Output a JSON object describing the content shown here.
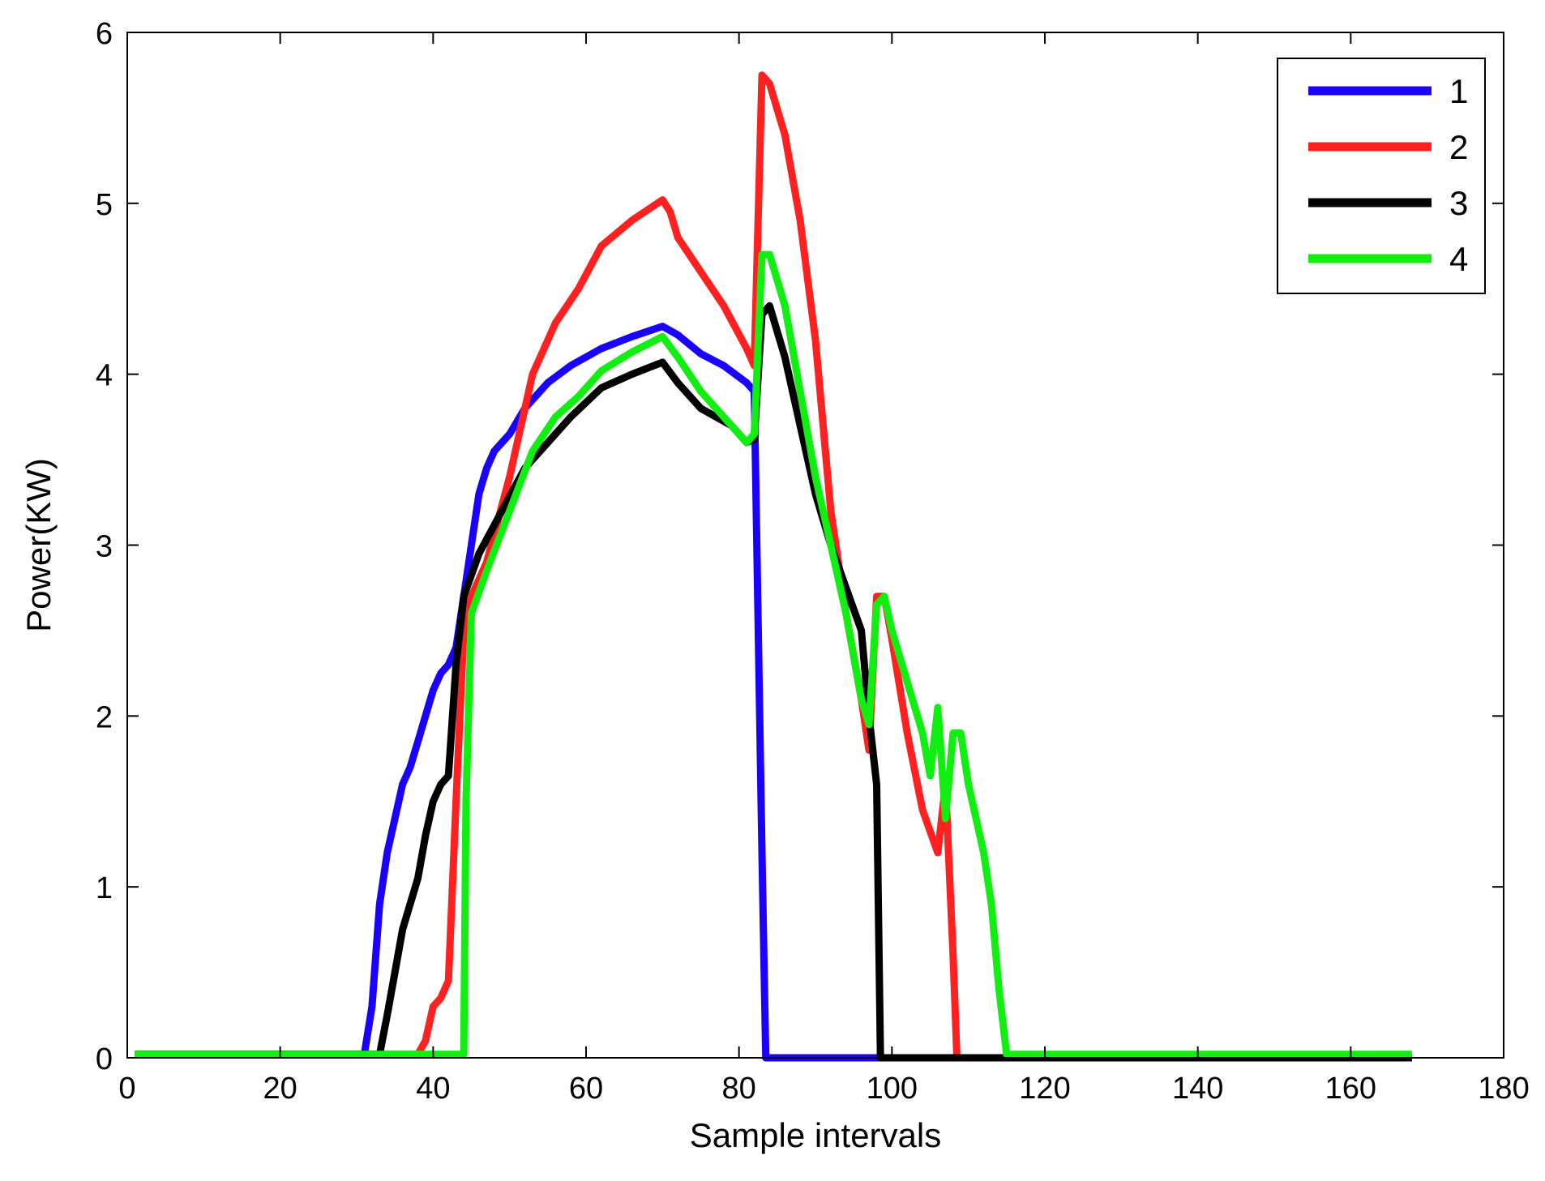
{
  "chart_data": {
    "type": "line",
    "title": "",
    "xlabel": "Sample intervals",
    "ylabel": "Power(KW)",
    "xlim": [
      0,
      180
    ],
    "ylim": [
      0,
      6
    ],
    "xticks": [
      0,
      20,
      40,
      60,
      80,
      100,
      120,
      140,
      160,
      180
    ],
    "yticks": [
      0,
      1,
      2,
      3,
      4,
      5,
      6
    ],
    "grid": false,
    "legend_position": "top-right",
    "series": [
      {
        "name": "1",
        "color": "#1a00ff",
        "points": [
          [
            1,
            0.02
          ],
          [
            31,
            0.02
          ],
          [
            32,
            0.3
          ],
          [
            33,
            0.9
          ],
          [
            34,
            1.2
          ],
          [
            35,
            1.4
          ],
          [
            36,
            1.6
          ],
          [
            37,
            1.7
          ],
          [
            38,
            1.85
          ],
          [
            39,
            2.0
          ],
          [
            40,
            2.15
          ],
          [
            41,
            2.25
          ],
          [
            42,
            2.3
          ],
          [
            43,
            2.4
          ],
          [
            44,
            2.7
          ],
          [
            45,
            3.0
          ],
          [
            46,
            3.3
          ],
          [
            47,
            3.45
          ],
          [
            48,
            3.55
          ],
          [
            50,
            3.65
          ],
          [
            52,
            3.8
          ],
          [
            55,
            3.95
          ],
          [
            58,
            4.05
          ],
          [
            62,
            4.15
          ],
          [
            66,
            4.22
          ],
          [
            70,
            4.28
          ],
          [
            72,
            4.23
          ],
          [
            75,
            4.12
          ],
          [
            78,
            4.05
          ],
          [
            81,
            3.95
          ],
          [
            82,
            3.9
          ],
          [
            83,
            1.2
          ],
          [
            83.5,
            0
          ],
          [
            98,
            0
          ],
          [
            168,
            0
          ]
        ]
      },
      {
        "name": "2",
        "color": "#ff2020",
        "points": [
          [
            1,
            0.02
          ],
          [
            38,
            0.02
          ],
          [
            39,
            0.1
          ],
          [
            40,
            0.3
          ],
          [
            41,
            0.35
          ],
          [
            42,
            0.45
          ],
          [
            43,
            1.5
          ],
          [
            44,
            2.5
          ],
          [
            45,
            2.7
          ],
          [
            47,
            2.9
          ],
          [
            50,
            3.4
          ],
          [
            53,
            4.0
          ],
          [
            56,
            4.3
          ],
          [
            59,
            4.5
          ],
          [
            62,
            4.75
          ],
          [
            66,
            4.9
          ],
          [
            70,
            5.02
          ],
          [
            71,
            4.95
          ],
          [
            72,
            4.8
          ],
          [
            75,
            4.6
          ],
          [
            78,
            4.4
          ],
          [
            81,
            4.15
          ],
          [
            82,
            4.05
          ],
          [
            83,
            5.75
          ],
          [
            84,
            5.7
          ],
          [
            86,
            5.4
          ],
          [
            88,
            4.9
          ],
          [
            90,
            4.2
          ],
          [
            92,
            3.2
          ],
          [
            94,
            2.6
          ],
          [
            96,
            2.1
          ],
          [
            97,
            1.8
          ],
          [
            98,
            2.7
          ],
          [
            99,
            2.7
          ],
          [
            100,
            2.45
          ],
          [
            102,
            1.9
          ],
          [
            104,
            1.45
          ],
          [
            106,
            1.2
          ],
          [
            107,
            1.6
          ],
          [
            108,
            0.6
          ],
          [
            108.5,
            0
          ],
          [
            110,
            0
          ],
          [
            168,
            0
          ]
        ]
      },
      {
        "name": "3",
        "color": "#000000",
        "points": [
          [
            1,
            0.02
          ],
          [
            33,
            0.02
          ],
          [
            34,
            0.25
          ],
          [
            35,
            0.5
          ],
          [
            36,
            0.75
          ],
          [
            37,
            0.9
          ],
          [
            38,
            1.05
          ],
          [
            39,
            1.3
          ],
          [
            40,
            1.5
          ],
          [
            41,
            1.6
          ],
          [
            42,
            1.65
          ],
          [
            43,
            2.3
          ],
          [
            44,
            2.7
          ],
          [
            46,
            2.95
          ],
          [
            49,
            3.2
          ],
          [
            52,
            3.45
          ],
          [
            55,
            3.6
          ],
          [
            58,
            3.75
          ],
          [
            62,
            3.92
          ],
          [
            66,
            4.0
          ],
          [
            70,
            4.07
          ],
          [
            72,
            3.95
          ],
          [
            75,
            3.8
          ],
          [
            79,
            3.7
          ],
          [
            81,
            3.6
          ],
          [
            82,
            3.62
          ],
          [
            83,
            4.35
          ],
          [
            84,
            4.4
          ],
          [
            86,
            4.1
          ],
          [
            88,
            3.7
          ],
          [
            90,
            3.3
          ],
          [
            92,
            3.0
          ],
          [
            94,
            2.75
          ],
          [
            96,
            2.5
          ],
          [
            97,
            2.0
          ],
          [
            98,
            1.6
          ],
          [
            98.5,
            0
          ],
          [
            110,
            0
          ],
          [
            116,
            0
          ],
          [
            168,
            0
          ]
        ]
      },
      {
        "name": "4",
        "color": "#11ee11",
        "points": [
          [
            1,
            0.02
          ],
          [
            44,
            0.02
          ],
          [
            44.3,
            1.5
          ],
          [
            45,
            2.6
          ],
          [
            47,
            2.85
          ],
          [
            50,
            3.2
          ],
          [
            53,
            3.55
          ],
          [
            56,
            3.75
          ],
          [
            59,
            3.87
          ],
          [
            62,
            4.02
          ],
          [
            66,
            4.13
          ],
          [
            70,
            4.22
          ],
          [
            72,
            4.1
          ],
          [
            75,
            3.9
          ],
          [
            78,
            3.75
          ],
          [
            81,
            3.6
          ],
          [
            82,
            3.65
          ],
          [
            83,
            4.7
          ],
          [
            84,
            4.7
          ],
          [
            86,
            4.4
          ],
          [
            88,
            3.9
          ],
          [
            90,
            3.4
          ],
          [
            92,
            3.0
          ],
          [
            94,
            2.6
          ],
          [
            96,
            2.1
          ],
          [
            97,
            1.95
          ],
          [
            98,
            2.65
          ],
          [
            99,
            2.7
          ],
          [
            100,
            2.5
          ],
          [
            102,
            2.2
          ],
          [
            104,
            1.9
          ],
          [
            105,
            1.65
          ],
          [
            106,
            2.05
          ],
          [
            107,
            1.4
          ],
          [
            108,
            1.9
          ],
          [
            109,
            1.9
          ],
          [
            110,
            1.6
          ],
          [
            112,
            1.2
          ],
          [
            113,
            0.9
          ],
          [
            114,
            0.4
          ],
          [
            115,
            0.02
          ],
          [
            168,
            0.02
          ]
        ]
      }
    ]
  }
}
